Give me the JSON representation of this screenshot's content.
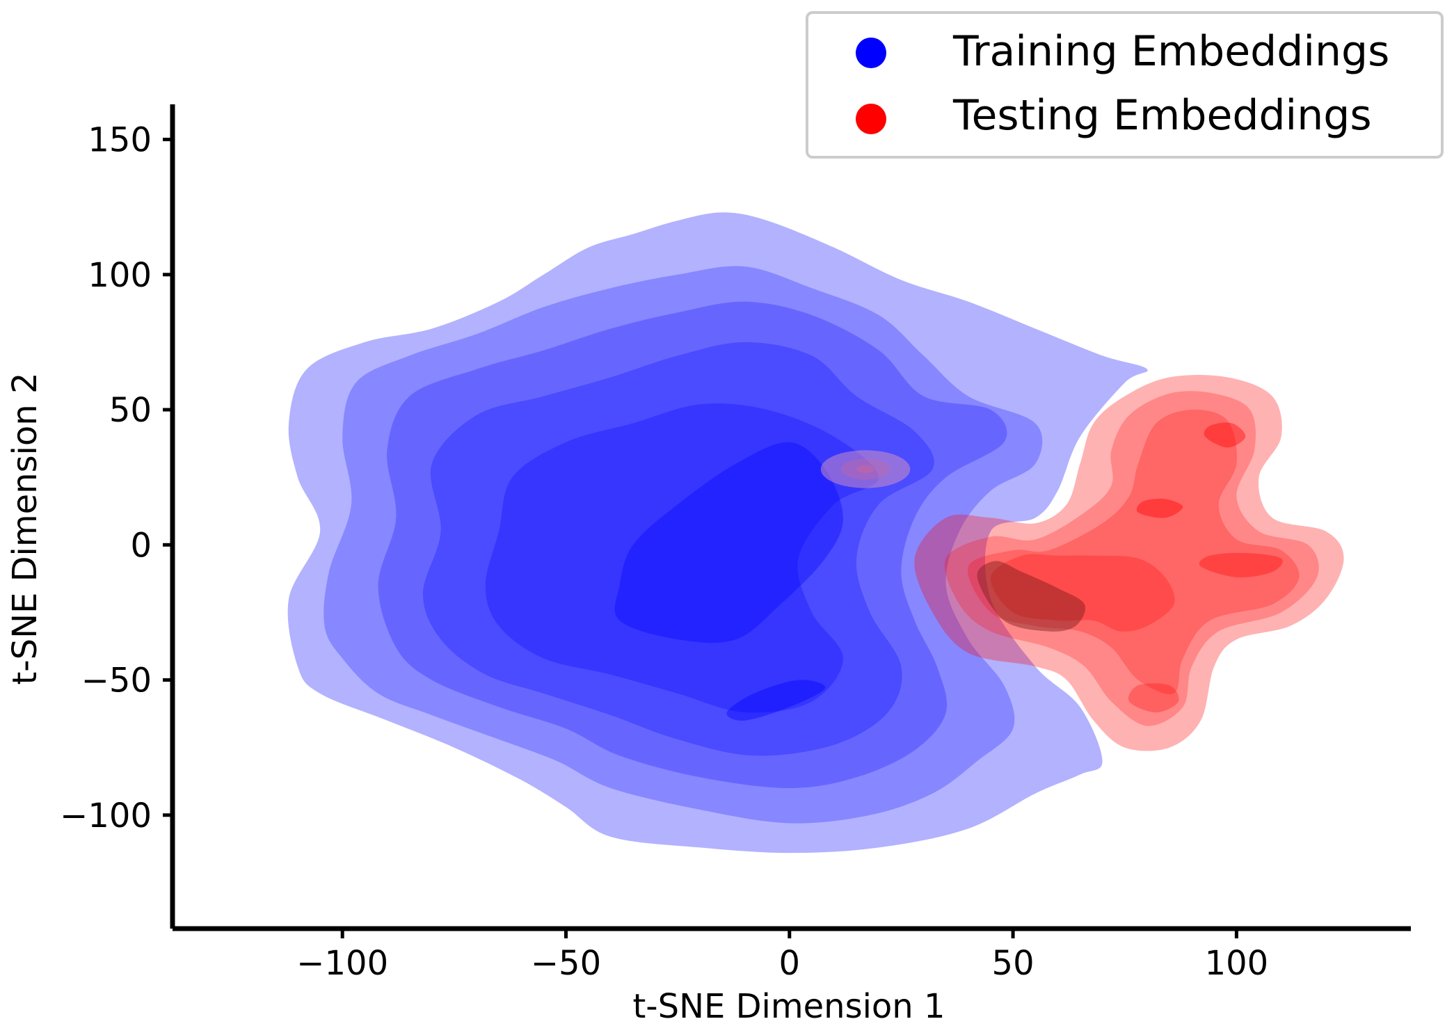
{
  "chart_data": {
    "type": "kde-density",
    "xlabel": "t-SNE Dimension 1",
    "ylabel": "t-SNE Dimension 2",
    "xlim": [
      -138,
      139
    ],
    "ylim": [
      -142,
      163
    ],
    "xticks": [
      -100,
      -50,
      0,
      50,
      100
    ],
    "yticks": [
      -100,
      -50,
      0,
      50,
      100,
      150
    ],
    "xtick_labels": [
      "−100",
      "−50",
      "0",
      "50",
      "100"
    ],
    "ytick_labels": [
      "−100",
      "−50",
      "0",
      "50",
      "100",
      "150"
    ],
    "legend_position": "upper-right",
    "series": [
      {
        "name": "Training Embeddings",
        "color": "#0000ff",
        "contours": [
          [
            [
              -110,
              -45
            ],
            [
              -105,
              -55
            ],
            [
              -90,
              -65
            ],
            [
              -75,
              -75
            ],
            [
              -60,
              -87
            ],
            [
              -50,
              -97
            ],
            [
              -40,
              -108
            ],
            [
              -20,
              -112
            ],
            [
              0,
              -114
            ],
            [
              20,
              -112
            ],
            [
              40,
              -105
            ],
            [
              55,
              -92
            ],
            [
              65,
              -85
            ],
            [
              70,
              -80
            ],
            [
              65,
              -60
            ],
            [
              55,
              -45
            ],
            [
              45,
              -20
            ],
            [
              45,
              5
            ],
            [
              55,
              10
            ],
            [
              60,
              20
            ],
            [
              65,
              40
            ],
            [
              75,
              60
            ],
            [
              80,
              65
            ],
            [
              70,
              70
            ],
            [
              55,
              80
            ],
            [
              40,
              90
            ],
            [
              25,
              98
            ],
            [
              10,
              110
            ],
            [
              -5,
              120
            ],
            [
              -15,
              123
            ],
            [
              -25,
              120
            ],
            [
              -35,
              115
            ],
            [
              -45,
              110
            ],
            [
              -55,
              100
            ],
            [
              -65,
              90
            ],
            [
              -80,
              80
            ],
            [
              -95,
              75
            ],
            [
              -108,
              65
            ],
            [
              -112,
              45
            ],
            [
              -110,
              25
            ],
            [
              -105,
              5
            ],
            [
              -112,
              -20
            ]
          ],
          [
            [
              -100,
              -42
            ],
            [
              -92,
              -55
            ],
            [
              -80,
              -63
            ],
            [
              -65,
              -72
            ],
            [
              -52,
              -80
            ],
            [
              -40,
              -90
            ],
            [
              -20,
              -98
            ],
            [
              0,
              -103
            ],
            [
              18,
              -100
            ],
            [
              32,
              -92
            ],
            [
              42,
              -80
            ],
            [
              50,
              -68
            ],
            [
              48,
              -52
            ],
            [
              40,
              -35
            ],
            [
              35,
              -15
            ],
            [
              38,
              5
            ],
            [
              45,
              20
            ],
            [
              55,
              30
            ],
            [
              55,
              45
            ],
            [
              40,
              55
            ],
            [
              30,
              70
            ],
            [
              20,
              85
            ],
            [
              5,
              95
            ],
            [
              -10,
              103
            ],
            [
              -25,
              100
            ],
            [
              -40,
              95
            ],
            [
              -55,
              88
            ],
            [
              -70,
              78
            ],
            [
              -85,
              70
            ],
            [
              -97,
              60
            ],
            [
              -100,
              40
            ],
            [
              -98,
              15
            ],
            [
              -103,
              -10
            ],
            [
              -104,
              -30
            ]
          ],
          [
            [
              -88,
              -38
            ],
            [
              -80,
              -50
            ],
            [
              -65,
              -60
            ],
            [
              -50,
              -68
            ],
            [
              -38,
              -78
            ],
            [
              -20,
              -86
            ],
            [
              0,
              -90
            ],
            [
              15,
              -86
            ],
            [
              28,
              -76
            ],
            [
              35,
              -62
            ],
            [
              33,
              -45
            ],
            [
              28,
              -28
            ],
            [
              25,
              -10
            ],
            [
              28,
              10
            ],
            [
              35,
              25
            ],
            [
              48,
              38
            ],
            [
              45,
              50
            ],
            [
              30,
              55
            ],
            [
              20,
              72
            ],
            [
              5,
              85
            ],
            [
              -10,
              90
            ],
            [
              -25,
              86
            ],
            [
              -40,
              80
            ],
            [
              -55,
              72
            ],
            [
              -70,
              65
            ],
            [
              -85,
              55
            ],
            [
              -90,
              35
            ],
            [
              -88,
              10
            ],
            [
              -92,
              -15
            ]
          ],
          [
            [
              -78,
              -35
            ],
            [
              -68,
              -48
            ],
            [
              -55,
              -55
            ],
            [
              -40,
              -63
            ],
            [
              -25,
              -72
            ],
            [
              -8,
              -78
            ],
            [
              10,
              -74
            ],
            [
              22,
              -62
            ],
            [
              25,
              -45
            ],
            [
              18,
              -25
            ],
            [
              15,
              -5
            ],
            [
              20,
              15
            ],
            [
              32,
              28
            ],
            [
              28,
              42
            ],
            [
              15,
              55
            ],
            [
              5,
              70
            ],
            [
              -10,
              75
            ],
            [
              -25,
              70
            ],
            [
              -40,
              62
            ],
            [
              -55,
              55
            ],
            [
              -70,
              48
            ],
            [
              -80,
              30
            ],
            [
              -78,
              5
            ],
            [
              -82,
              -18
            ]
          ],
          [
            [
              -65,
              -30
            ],
            [
              -55,
              -42
            ],
            [
              -40,
              -48
            ],
            [
              -25,
              -55
            ],
            [
              -10,
              -62
            ],
            [
              5,
              -58
            ],
            [
              12,
              -42
            ],
            [
              5,
              -25
            ],
            [
              2,
              -5
            ],
            [
              10,
              15
            ],
            [
              20,
              25
            ],
            [
              10,
              40
            ],
            [
              -5,
              50
            ],
            [
              -20,
              52
            ],
            [
              -35,
              45
            ],
            [
              -50,
              38
            ],
            [
              -62,
              25
            ],
            [
              -65,
              5
            ],
            [
              -68,
              -15
            ]
          ],
          [
            [
              -38,
              -28
            ],
            [
              -25,
              -35
            ],
            [
              -12,
              -35
            ],
            [
              -2,
              -22
            ],
            [
              8,
              -5
            ],
            [
              12,
              10
            ],
            [
              8,
              28
            ],
            [
              0,
              38
            ],
            [
              -12,
              30
            ],
            [
              -25,
              15
            ],
            [
              -35,
              0
            ],
            [
              -38,
              -15
            ]
          ],
          [
            [
              -10,
              -65
            ],
            [
              0,
              -60
            ],
            [
              8,
              -53
            ],
            [
              2,
              -50
            ],
            [
              -8,
              -55
            ],
            [
              -14,
              -62
            ]
          ]
        ]
      },
      {
        "name": "Testing Embeddings",
        "color": "#ff0000",
        "contours": [
          [
            [
              28,
              -5
            ],
            [
              32,
              -25
            ],
            [
              40,
              -40
            ],
            [
              55,
              -45
            ],
            [
              62,
              -50
            ],
            [
              68,
              -65
            ],
            [
              75,
              -75
            ],
            [
              85,
              -75
            ],
            [
              92,
              -65
            ],
            [
              95,
              -45
            ],
            [
              100,
              -35
            ],
            [
              112,
              -30
            ],
            [
              120,
              -20
            ],
            [
              124,
              -5
            ],
            [
              120,
              5
            ],
            [
              108,
              10
            ],
            [
              105,
              25
            ],
            [
              110,
              40
            ],
            [
              108,
              55
            ],
            [
              98,
              62
            ],
            [
              85,
              62
            ],
            [
              75,
              55
            ],
            [
              68,
              45
            ],
            [
              65,
              30
            ],
            [
              62,
              15
            ],
            [
              55,
              8
            ],
            [
              45,
              10
            ],
            [
              35,
              10
            ]
          ],
          [
            [
              35,
              -5
            ],
            [
              38,
              -22
            ],
            [
              45,
              -32
            ],
            [
              58,
              -38
            ],
            [
              66,
              -45
            ],
            [
              72,
              -58
            ],
            [
              80,
              -67
            ],
            [
              88,
              -60
            ],
            [
              90,
              -45
            ],
            [
              96,
              -32
            ],
            [
              110,
              -25
            ],
            [
              118,
              -12
            ],
            [
              116,
              0
            ],
            [
              105,
              5
            ],
            [
              100,
              18
            ],
            [
              104,
              35
            ],
            [
              103,
              50
            ],
            [
              95,
              56
            ],
            [
              85,
              56
            ],
            [
              76,
              48
            ],
            [
              72,
              35
            ],
            [
              72,
              22
            ],
            [
              66,
              12
            ],
            [
              55,
              2
            ],
            [
              45,
              3
            ]
          ],
          [
            [
              40,
              -8
            ],
            [
              45,
              -25
            ],
            [
              55,
              -30
            ],
            [
              65,
              -32
            ],
            [
              72,
              -38
            ],
            [
              78,
              -50
            ],
            [
              86,
              -55
            ],
            [
              88,
              -42
            ],
            [
              94,
              -28
            ],
            [
              108,
              -22
            ],
            [
              114,
              -12
            ],
            [
              110,
              -2
            ],
            [
              100,
              2
            ],
            [
              96,
              15
            ],
            [
              100,
              30
            ],
            [
              98,
              46
            ],
            [
              90,
              50
            ],
            [
              82,
              45
            ],
            [
              78,
              30
            ],
            [
              76,
              18
            ],
            [
              70,
              8
            ],
            [
              58,
              -2
            ],
            [
              50,
              -2
            ]
          ],
          [
            [
              45,
              -12
            ],
            [
              50,
              -25
            ],
            [
              60,
              -28
            ],
            [
              68,
              -28
            ],
            [
              74,
              -32
            ],
            [
              80,
              -30
            ],
            [
              86,
              -22
            ],
            [
              84,
              -12
            ],
            [
              78,
              -5
            ],
            [
              68,
              -4
            ],
            [
              60,
              -4
            ],
            [
              52,
              -4
            ]
          ],
          [
            [
              76,
              -58
            ],
            [
              82,
              -62
            ],
            [
              87,
              -58
            ],
            [
              85,
              -52
            ],
            [
              78,
              -52
            ]
          ],
          [
            [
              92,
              -8
            ],
            [
              100,
              -12
            ],
            [
              108,
              -10
            ],
            [
              110,
              -5
            ],
            [
              102,
              -3
            ],
            [
              94,
              -4
            ]
          ],
          [
            [
              93,
              40
            ],
            [
              98,
              36
            ],
            [
              102,
              40
            ],
            [
              99,
              45
            ],
            [
              94,
              44
            ]
          ],
          [
            [
              78,
              12
            ],
            [
              84,
              10
            ],
            [
              88,
              14
            ],
            [
              84,
              17
            ],
            [
              79,
              16
            ]
          ]
        ]
      }
    ],
    "extra_blob": {
      "color": "#cc6699",
      "center": [
        17,
        28
      ],
      "radius": [
        10,
        7
      ]
    }
  }
}
